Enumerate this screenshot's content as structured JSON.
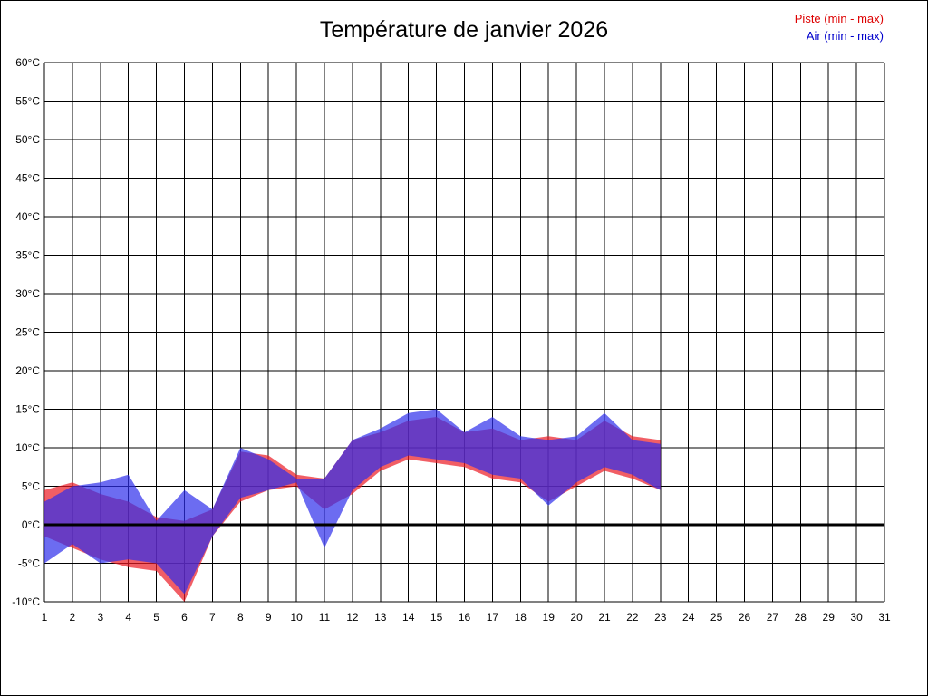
{
  "title": "Température de janvier 2026",
  "legend": {
    "items": [
      {
        "label": "Piste (min - max)",
        "color": "#dd0000"
      },
      {
        "label": "Air (min - max)",
        "color": "#0000cc"
      }
    ]
  },
  "chart_data": {
    "type": "area",
    "subtype": "min-max-band",
    "title": "Température de janvier 2026",
    "xlabel": "",
    "ylabel": "",
    "xlim": [
      1,
      31
    ],
    "ylim": [
      -10,
      60
    ],
    "grid": true,
    "zero_line": 0,
    "legend_position": "top-right",
    "x_ticks": [
      1,
      2,
      3,
      4,
      5,
      6,
      7,
      8,
      9,
      10,
      11,
      12,
      13,
      14,
      15,
      16,
      17,
      18,
      19,
      20,
      21,
      22,
      23,
      24,
      25,
      26,
      27,
      28,
      29,
      30,
      31
    ],
    "y_ticks": [
      {
        "value": 60,
        "label": "60°C"
      },
      {
        "value": 55,
        "label": "55°C"
      },
      {
        "value": 50,
        "label": "50°C"
      },
      {
        "value": 45,
        "label": "45°C"
      },
      {
        "value": 40,
        "label": "40°C"
      },
      {
        "value": 35,
        "label": "35°C"
      },
      {
        "value": 30,
        "label": "30°C"
      },
      {
        "value": 25,
        "label": "25°C"
      },
      {
        "value": 20,
        "label": "20°C"
      },
      {
        "value": 15,
        "label": "15°C"
      },
      {
        "value": 10,
        "label": "10°C"
      },
      {
        "value": 5,
        "label": "5°C"
      },
      {
        "value": 0,
        "label": "0°C"
      },
      {
        "value": -5,
        "label": "-5°C"
      },
      {
        "value": -10,
        "label": "-10°C"
      }
    ],
    "x": [
      1,
      2,
      3,
      4,
      5,
      6,
      7,
      8,
      9,
      10,
      11,
      12,
      13,
      14,
      15,
      16,
      17,
      18,
      19,
      20,
      21,
      22,
      23
    ],
    "series": [
      {
        "name": "Piste",
        "color": "rgba(235,25,35,0.70)",
        "min": [
          -1.5,
          -3,
          -4.5,
          -5.5,
          -6,
          -10,
          -1.5,
          3,
          4.5,
          5,
          2,
          4,
          7,
          8.5,
          8,
          7.5,
          6,
          5.5,
          3,
          5,
          7,
          6,
          4.5
        ],
        "max": [
          4.5,
          5.5,
          4,
          3,
          1,
          0.5,
          2,
          9.5,
          9,
          6.5,
          6,
          11,
          12,
          13.5,
          14,
          12,
          12.5,
          11,
          11.5,
          11,
          13.5,
          11.5,
          11
        ]
      },
      {
        "name": "Air",
        "color": "rgba(45,45,235,0.70)",
        "min": [
          -5,
          -2.5,
          -5,
          -4.5,
          -5,
          -9,
          -1.5,
          3.5,
          4.5,
          5.5,
          -3,
          4.5,
          7.5,
          9,
          8.5,
          8,
          6.5,
          6,
          2.5,
          5.5,
          7.5,
          6.5,
          4.5
        ],
        "max": [
          3,
          5,
          5.5,
          6.5,
          0.5,
          4.5,
          2,
          10,
          8.5,
          6,
          6,
          11,
          12.5,
          14.5,
          15,
          12,
          14,
          11.5,
          11,
          11.5,
          14.5,
          11,
          10.5
        ]
      }
    ]
  }
}
